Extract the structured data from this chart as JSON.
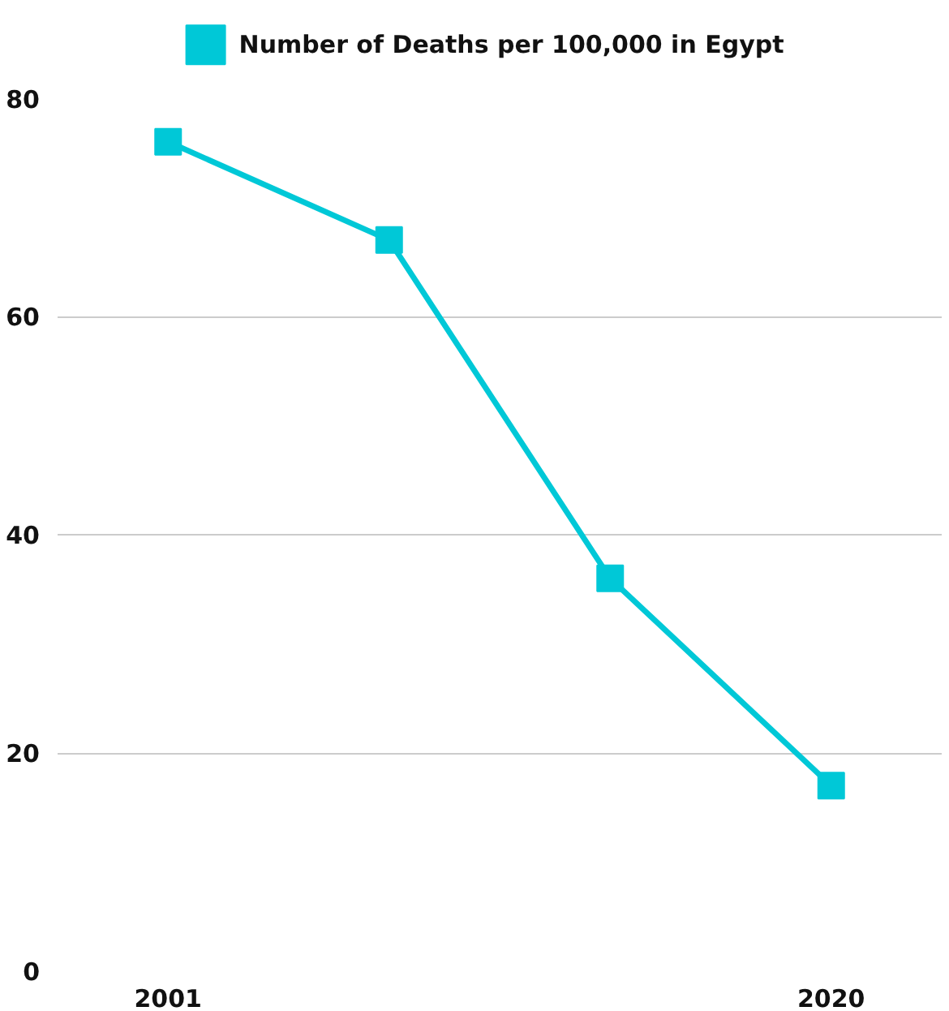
{
  "chart_data": {
    "type": "line",
    "categories": [
      "2001",
      null,
      null,
      "2020"
    ],
    "series": [
      {
        "name": "Number of Deaths per 100,000 in Egypt",
        "color": "#00c8d7",
        "values": [
          76,
          67,
          36,
          17
        ]
      }
    ],
    "ylim": [
      0,
      80
    ],
    "yticks": [
      0,
      20,
      40,
      60,
      80
    ],
    "grid": "y",
    "legend": "top",
    "marker": "square",
    "line_style": "solid"
  }
}
